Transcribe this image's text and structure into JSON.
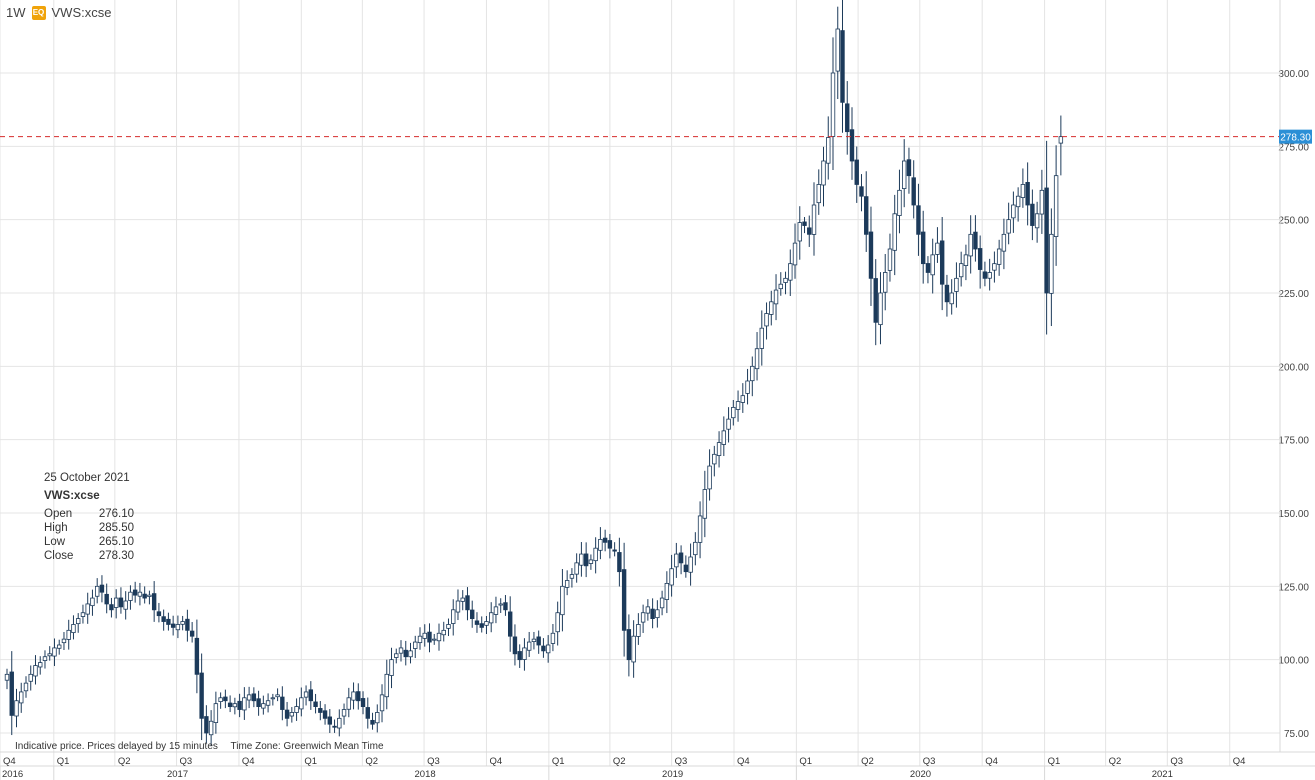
{
  "header": {
    "interval": "1W",
    "badge": "EQ",
    "symbol": "VWS:xcse"
  },
  "info_box": {
    "date": "25 October 2021",
    "symbol": "VWS:xcse",
    "rows": [
      {
        "label": "Open",
        "value": "276.10"
      },
      {
        "label": "High",
        "value": "285.50"
      },
      {
        "label": "Low",
        "value": "265.10"
      },
      {
        "label": "Close",
        "value": "278.30"
      }
    ]
  },
  "footer": {
    "note": "Indicative price. Prices delayed by 15 minutes",
    "timezone": "Time Zone: Greenwich Mean Time"
  },
  "colors": {
    "up": "#ffffff",
    "down": "#1c3a5a",
    "wick": "#1c3a5a",
    "grid": "#e4e4e4",
    "price_line": "#d62d2d",
    "price_label_bg": "#2b8fd6"
  },
  "chart_data": {
    "type": "candlestick",
    "interval": "1W",
    "ylim": [
      70,
      320
    ],
    "yticks": [
      75,
      100,
      125,
      150,
      175,
      200,
      225,
      250,
      275,
      300
    ],
    "ytick_labels": [
      "75.00",
      "100.00",
      "125.00",
      "150.00",
      "175.00",
      "200.00",
      "225.00",
      "250.00",
      "275.00",
      "300.00"
    ],
    "last_price": 278.3,
    "last_price_label": "278.30",
    "x_start": "2016-10-24",
    "x_end": "2021-10-25",
    "quarter_ticks": [
      {
        "date": "2016-10-01",
        "label": "Q4"
      },
      {
        "date": "2017-01-01",
        "label": "Q1"
      },
      {
        "date": "2017-04-01",
        "label": "Q2"
      },
      {
        "date": "2017-07-01",
        "label": "Q3"
      },
      {
        "date": "2017-10-01",
        "label": "Q4"
      },
      {
        "date": "2018-01-01",
        "label": "Q1"
      },
      {
        "date": "2018-04-01",
        "label": "Q2"
      },
      {
        "date": "2018-07-01",
        "label": "Q3"
      },
      {
        "date": "2018-10-01",
        "label": "Q4"
      },
      {
        "date": "2019-01-01",
        "label": "Q1"
      },
      {
        "date": "2019-04-01",
        "label": "Q2"
      },
      {
        "date": "2019-07-01",
        "label": "Q3"
      },
      {
        "date": "2019-10-01",
        "label": "Q4"
      },
      {
        "date": "2020-01-01",
        "label": "Q1"
      },
      {
        "date": "2020-04-01",
        "label": "Q2"
      },
      {
        "date": "2020-07-01",
        "label": "Q3"
      },
      {
        "date": "2020-10-01",
        "label": "Q4"
      },
      {
        "date": "2021-01-01",
        "label": "Q1"
      },
      {
        "date": "2021-04-01",
        "label": "Q2"
      },
      {
        "date": "2021-07-01",
        "label": "Q3"
      },
      {
        "date": "2021-10-01",
        "label": "Q4"
      }
    ],
    "year_ticks": [
      {
        "date": "2016-10-01",
        "label": "2016"
      },
      {
        "date": "2017-01-01",
        "label": "2017"
      },
      {
        "date": "2018-01-01",
        "label": "2018"
      },
      {
        "date": "2019-01-01",
        "label": "2019"
      },
      {
        "date": "2020-01-01",
        "label": "2020"
      },
      {
        "date": "2021-01-01",
        "label": "2021"
      }
    ],
    "close": [
      95,
      81,
      86,
      89,
      92,
      95,
      98,
      99,
      101,
      102,
      104,
      105,
      107,
      110,
      112,
      114,
      116,
      119,
      121,
      125,
      123,
      119,
      117,
      121,
      118,
      120,
      123,
      122,
      123,
      121,
      122,
      117,
      115,
      113,
      112,
      111,
      112,
      113,
      110,
      108,
      95,
      80,
      75,
      79,
      85,
      87,
      86,
      84,
      85,
      83,
      87,
      88,
      86,
      84,
      85,
      86,
      87,
      88,
      83,
      80,
      82,
      84,
      87,
      89,
      86,
      84,
      82,
      80,
      78,
      77,
      80,
      83,
      87,
      89,
      86,
      84,
      80,
      78,
      82,
      88,
      95,
      100,
      102,
      104,
      101,
      103,
      106,
      108,
      109,
      106,
      107,
      109,
      110,
      112,
      117,
      120,
      121,
      117,
      114,
      112,
      111,
      113,
      116,
      118,
      119,
      117,
      108,
      102,
      100,
      104,
      106,
      107,
      105,
      103,
      105,
      109,
      116,
      125,
      127,
      129,
      133,
      136,
      132,
      134,
      138,
      141,
      140,
      138,
      137,
      130,
      110,
      100,
      108,
      112,
      116,
      118,
      114,
      117,
      121,
      126,
      131,
      136,
      133,
      130,
      135,
      140,
      149,
      158,
      166,
      170,
      174,
      178,
      182,
      186,
      188,
      190,
      195,
      200,
      206,
      213,
      218,
      222,
      226,
      228,
      230,
      235,
      242,
      249,
      248,
      245,
      255,
      262,
      270,
      278,
      300,
      315,
      290,
      280,
      270,
      262,
      258,
      245,
      230,
      215,
      225,
      232,
      240,
      252,
      260,
      270,
      265,
      255,
      245,
      235,
      232,
      238,
      242,
      228,
      222,
      225,
      230,
      235,
      238,
      245,
      240,
      233,
      230,
      232,
      235,
      240,
      245,
      250,
      255,
      258,
      262,
      255,
      248,
      252,
      260,
      225,
      245,
      265,
      278.3
    ]
  }
}
